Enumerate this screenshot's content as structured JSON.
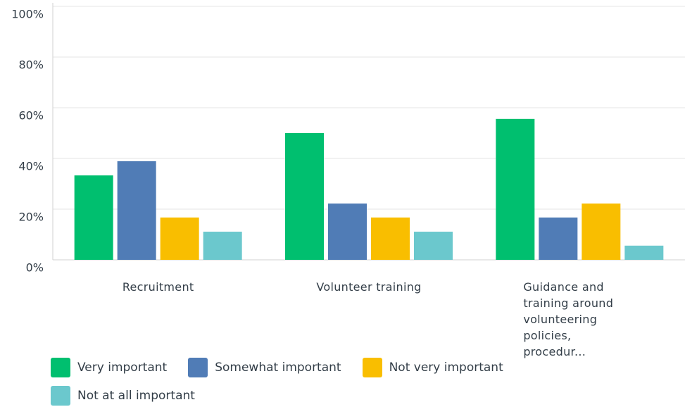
{
  "chart_data": {
    "type": "bar",
    "categories": [
      "Recruitment",
      "Volunteer training",
      "Guidance and training around volunteering policies, procedur..."
    ],
    "series": [
      {
        "name": "Very important",
        "color": "#00bf6f",
        "values": [
          33.3,
          50,
          55.6
        ]
      },
      {
        "name": "Somewhat important",
        "color": "#507cb6",
        "values": [
          38.9,
          22.2,
          16.7
        ]
      },
      {
        "name": "Not very important",
        "color": "#f9be00",
        "values": [
          16.7,
          16.7,
          22.2
        ]
      },
      {
        "name": "Not at all important",
        "color": "#6bc8cd",
        "values": [
          11.1,
          11.1,
          5.6
        ]
      }
    ],
    "ylim": [
      0,
      100
    ],
    "yticks": [
      {
        "value": 0,
        "label": "0%"
      },
      {
        "value": 20,
        "label": "20%"
      },
      {
        "value": 40,
        "label": "40%"
      },
      {
        "value": 60,
        "label": "60%"
      },
      {
        "value": 80,
        "label": "80%"
      },
      {
        "value": 100,
        "label": "100%"
      }
    ],
    "grid": true,
    "legend": "bottom"
  }
}
